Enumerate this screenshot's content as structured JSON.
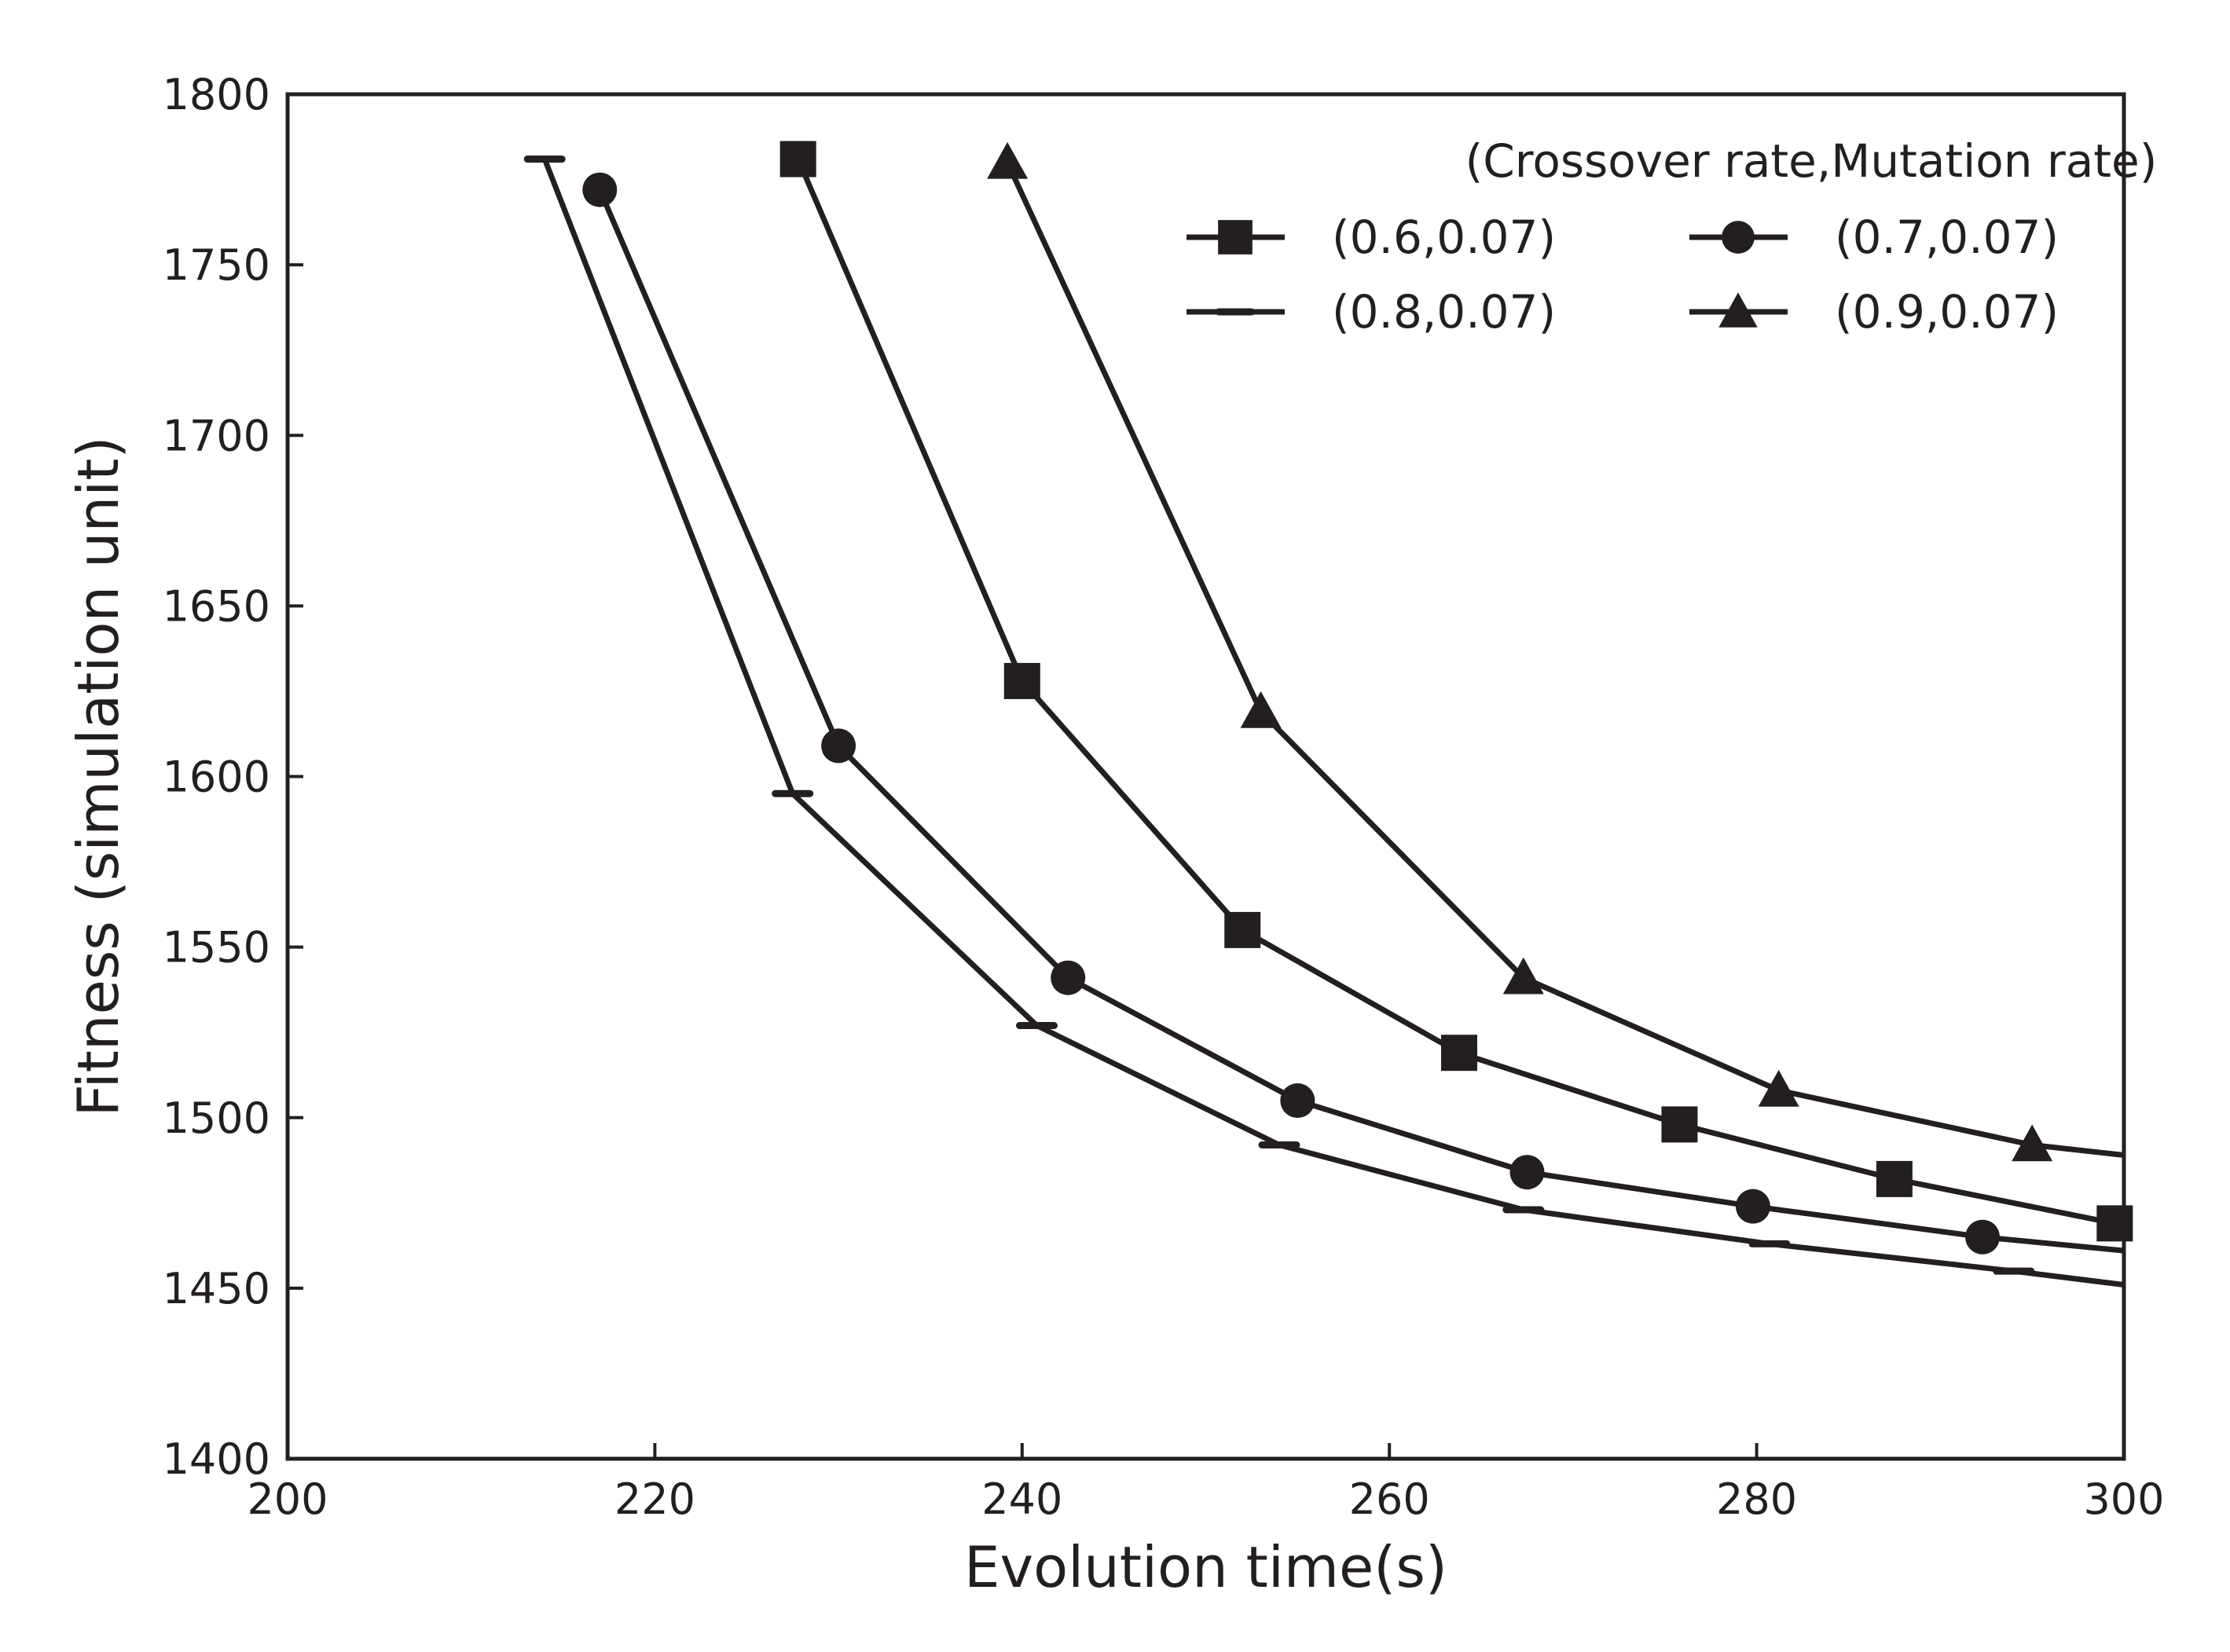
{
  "chart_data": {
    "type": "line",
    "title": "",
    "xlabel": "Evolution time(s)",
    "ylabel": "Fitness (simulation unit)",
    "xlim": [
      200,
      300
    ],
    "ylim": [
      1400,
      1800
    ],
    "xticks": [
      200,
      220,
      240,
      260,
      280,
      300
    ],
    "yticks": [
      1400,
      1450,
      1500,
      1550,
      1600,
      1650,
      1700,
      1750,
      1800
    ],
    "grid": false,
    "legend": {
      "title": "(Crossover rate,Mutation rate)",
      "placement": "top-right",
      "columns": 2
    },
    "colors": {
      "line": "#231f20",
      "axis": "#231f20",
      "background": "#ffffff"
    },
    "series": [
      {
        "name": "(0.6,0.07)",
        "marker": "square",
        "x": [
          227.8,
          240.0,
          252.0,
          263.8,
          275.8,
          287.5,
          299.5
        ],
        "y": [
          1781,
          1628,
          1555,
          1519,
          1498,
          1482,
          1469
        ]
      },
      {
        "name": "(0.7,0.07)",
        "marker": "circle",
        "x": [
          217.0,
          230.0,
          242.5,
          255.0,
          267.5,
          279.8,
          292.3,
          300.0
        ],
        "y": [
          1772,
          1609,
          1541,
          1505,
          1484,
          1474,
          1465,
          1461
        ]
      },
      {
        "name": "(0.8,0.07)",
        "marker": "tick",
        "x": [
          214.0,
          227.5,
          240.8,
          254.0,
          267.3,
          280.7,
          294.0,
          300.0
        ],
        "y": [
          1781,
          1595,
          1527,
          1492,
          1473,
          1463,
          1455,
          1451
        ]
      },
      {
        "name": "(0.9,0.07)",
        "marker": "triangle",
        "x": [
          239.2,
          253.0,
          267.3,
          281.2,
          295.0,
          300.0
        ],
        "y": [
          1780,
          1619,
          1541,
          1508,
          1492,
          1489
        ]
      }
    ]
  }
}
